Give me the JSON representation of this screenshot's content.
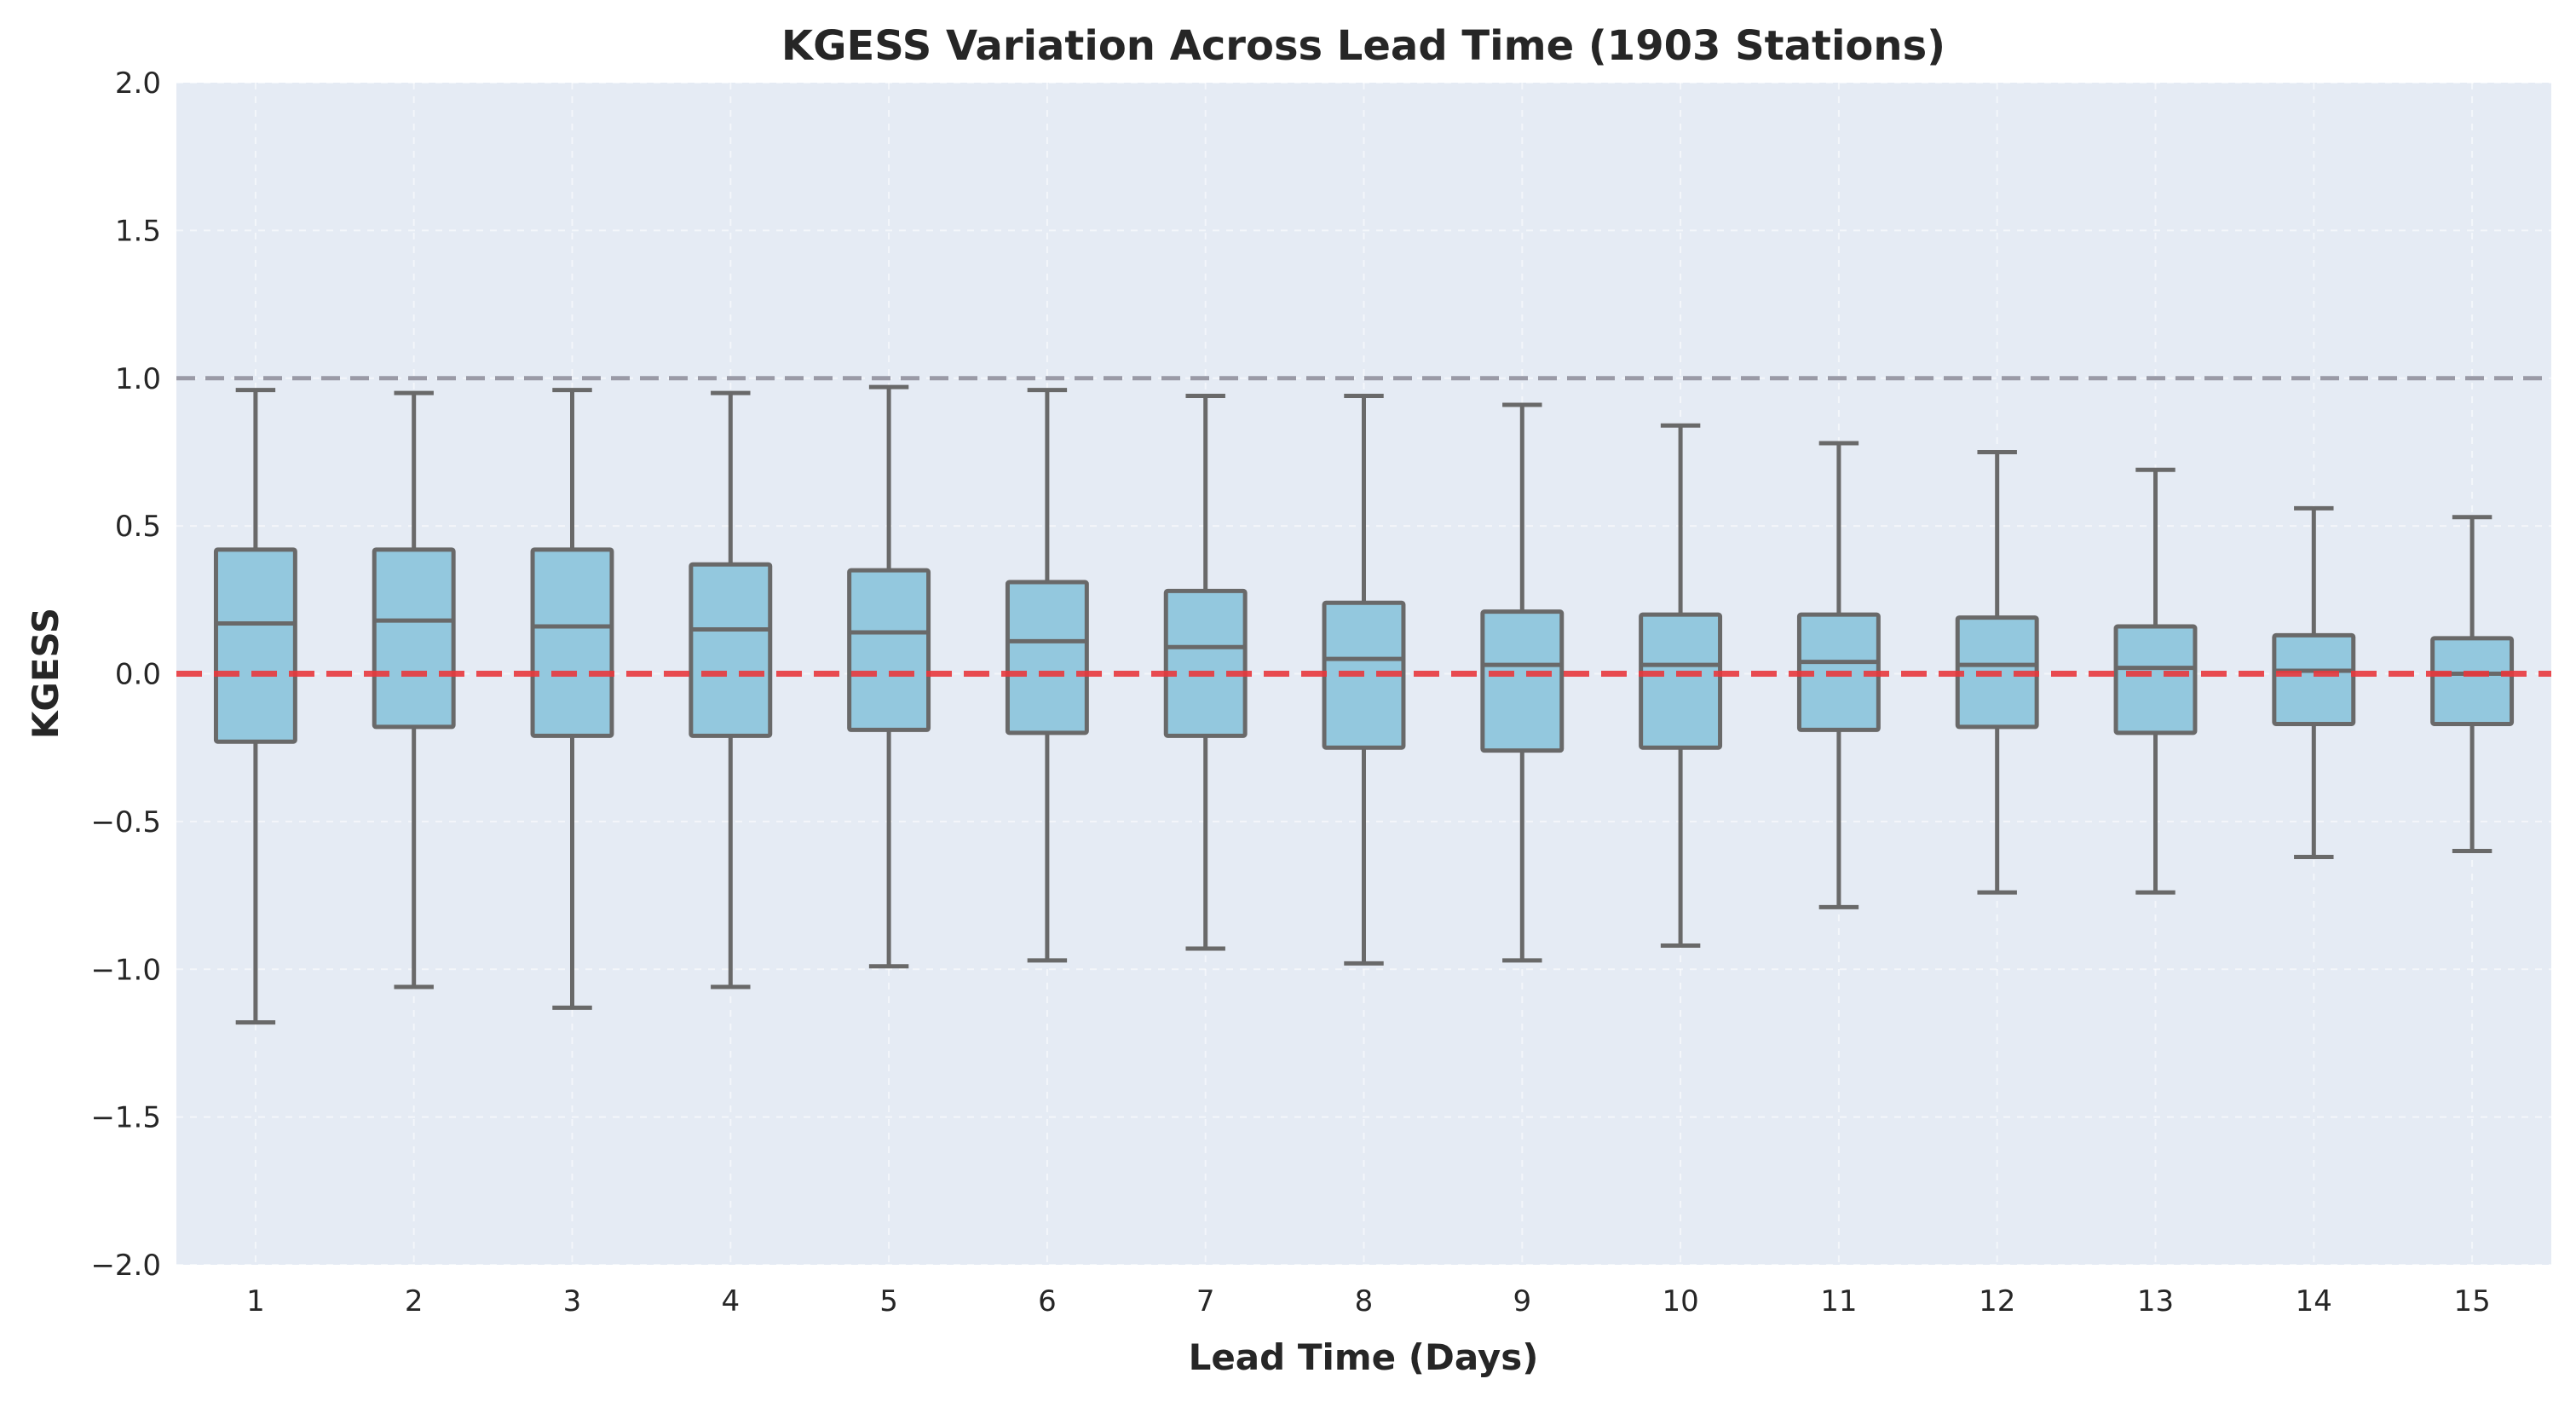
{
  "chart_data": {
    "type": "box",
    "title": "KGESS Variation Across Lead Time (1903 Stations)",
    "xlabel": "Lead Time (Days)",
    "ylabel": "KGESS",
    "categories": [
      "1",
      "2",
      "3",
      "4",
      "5",
      "6",
      "7",
      "8",
      "9",
      "10",
      "11",
      "12",
      "13",
      "14",
      "15"
    ],
    "yticks": [
      "2.0",
      "1.5",
      "1.0",
      "0.5",
      "0.0",
      "−0.5",
      "−1.0",
      "−1.5",
      "−2.0"
    ],
    "ylim": [
      -2.0,
      2.0
    ],
    "grid": true,
    "reference_lines": [
      {
        "y": 1.0,
        "style": "dashed",
        "color": "#9a9aa6"
      },
      {
        "y": 0.0,
        "style": "dashed",
        "color": "#e8383d"
      }
    ],
    "boxes": [
      {
        "x": "1",
        "whislo": -1.18,
        "q1": -0.23,
        "med": 0.17,
        "q3": 0.42,
        "whishi": 0.96
      },
      {
        "x": "2",
        "whislo": -1.06,
        "q1": -0.18,
        "med": 0.18,
        "q3": 0.42,
        "whishi": 0.95
      },
      {
        "x": "3",
        "whislo": -1.13,
        "q1": -0.21,
        "med": 0.16,
        "q3": 0.42,
        "whishi": 0.96
      },
      {
        "x": "4",
        "whislo": -1.06,
        "q1": -0.21,
        "med": 0.15,
        "q3": 0.37,
        "whishi": 0.95
      },
      {
        "x": "5",
        "whislo": -0.99,
        "q1": -0.19,
        "med": 0.14,
        "q3": 0.35,
        "whishi": 0.97
      },
      {
        "x": "6",
        "whislo": -0.97,
        "q1": -0.2,
        "med": 0.11,
        "q3": 0.31,
        "whishi": 0.96
      },
      {
        "x": "7",
        "whislo": -0.93,
        "q1": -0.21,
        "med": 0.09,
        "q3": 0.28,
        "whishi": 0.94
      },
      {
        "x": "8",
        "whislo": -0.98,
        "q1": -0.25,
        "med": 0.05,
        "q3": 0.24,
        "whishi": 0.94
      },
      {
        "x": "9",
        "whislo": -0.97,
        "q1": -0.26,
        "med": 0.03,
        "q3": 0.21,
        "whishi": 0.91
      },
      {
        "x": "10",
        "whislo": -0.92,
        "q1": -0.25,
        "med": 0.03,
        "q3": 0.2,
        "whishi": 0.84
      },
      {
        "x": "11",
        "whislo": -0.79,
        "q1": -0.19,
        "med": 0.04,
        "q3": 0.2,
        "whishi": 0.78
      },
      {
        "x": "12",
        "whislo": -0.74,
        "q1": -0.18,
        "med": 0.03,
        "q3": 0.19,
        "whishi": 0.75
      },
      {
        "x": "13",
        "whislo": -0.74,
        "q1": -0.2,
        "med": 0.02,
        "q3": 0.16,
        "whishi": 0.69
      },
      {
        "x": "14",
        "whislo": -0.62,
        "q1": -0.17,
        "med": 0.01,
        "q3": 0.13,
        "whishi": 0.56
      },
      {
        "x": "15",
        "whislo": -0.6,
        "q1": -0.17,
        "med": 0.0,
        "q3": 0.12,
        "whishi": 0.53
      }
    ],
    "colors": {
      "plot_background": "#e5ebf4",
      "box_fill": "#93c8de",
      "box_edge": "#696969",
      "zero_line": "#e8383d",
      "one_line": "#9a9aa6"
    }
  }
}
